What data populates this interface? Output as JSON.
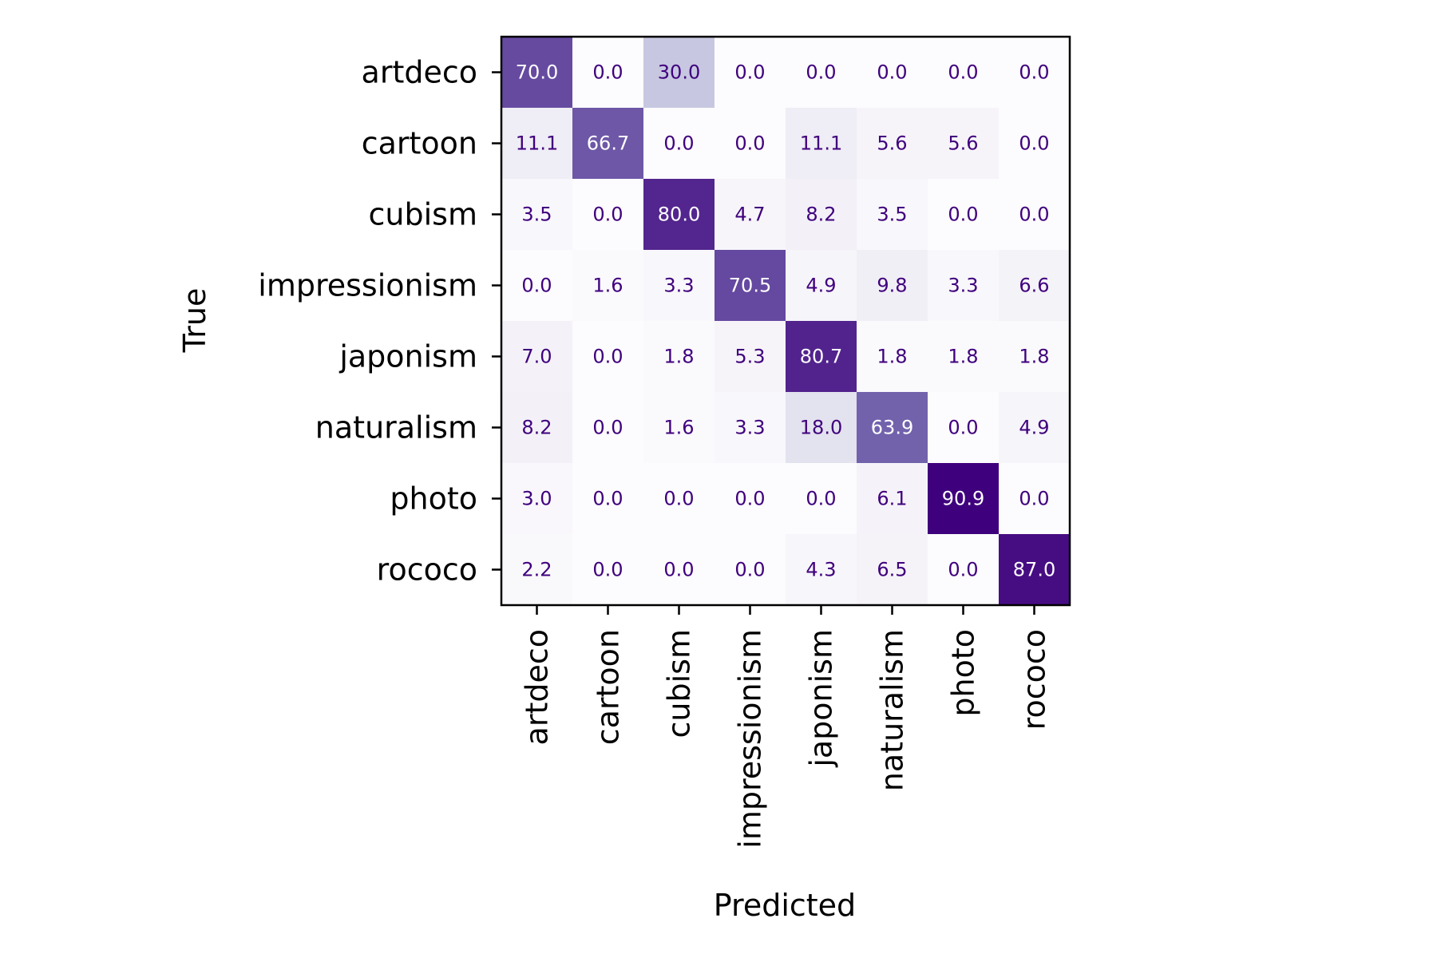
{
  "chart_data": {
    "type": "heatmap",
    "title": "",
    "xlabel": "Predicted",
    "ylabel": "True",
    "x_categories": [
      "artdeco",
      "cartoon",
      "cubism",
      "impressionism",
      "japonism",
      "naturalism",
      "photo",
      "rococo"
    ],
    "y_categories": [
      "artdeco",
      "cartoon",
      "cubism",
      "impressionism",
      "japonism",
      "naturalism",
      "photo",
      "rococo"
    ],
    "values": [
      [
        70.0,
        0.0,
        30.0,
        0.0,
        0.0,
        0.0,
        0.0,
        0.0
      ],
      [
        11.1,
        66.7,
        0.0,
        0.0,
        11.1,
        5.6,
        5.6,
        0.0
      ],
      [
        3.5,
        0.0,
        80.0,
        4.7,
        8.2,
        3.5,
        0.0,
        0.0
      ],
      [
        0.0,
        1.6,
        3.3,
        70.5,
        4.9,
        9.8,
        3.3,
        6.6
      ],
      [
        7.0,
        0.0,
        1.8,
        5.3,
        80.7,
        1.8,
        1.8,
        1.8
      ],
      [
        8.2,
        0.0,
        1.6,
        3.3,
        18.0,
        63.9,
        0.0,
        4.9
      ],
      [
        3.0,
        0.0,
        0.0,
        0.0,
        0.0,
        6.1,
        90.9,
        0.0
      ],
      [
        2.2,
        0.0,
        0.0,
        0.0,
        4.3,
        6.5,
        0.0,
        87.0
      ]
    ],
    "vmin": 0,
    "vmax": 90.9,
    "colormap": "Purples",
    "grid": false,
    "legend": "none"
  }
}
